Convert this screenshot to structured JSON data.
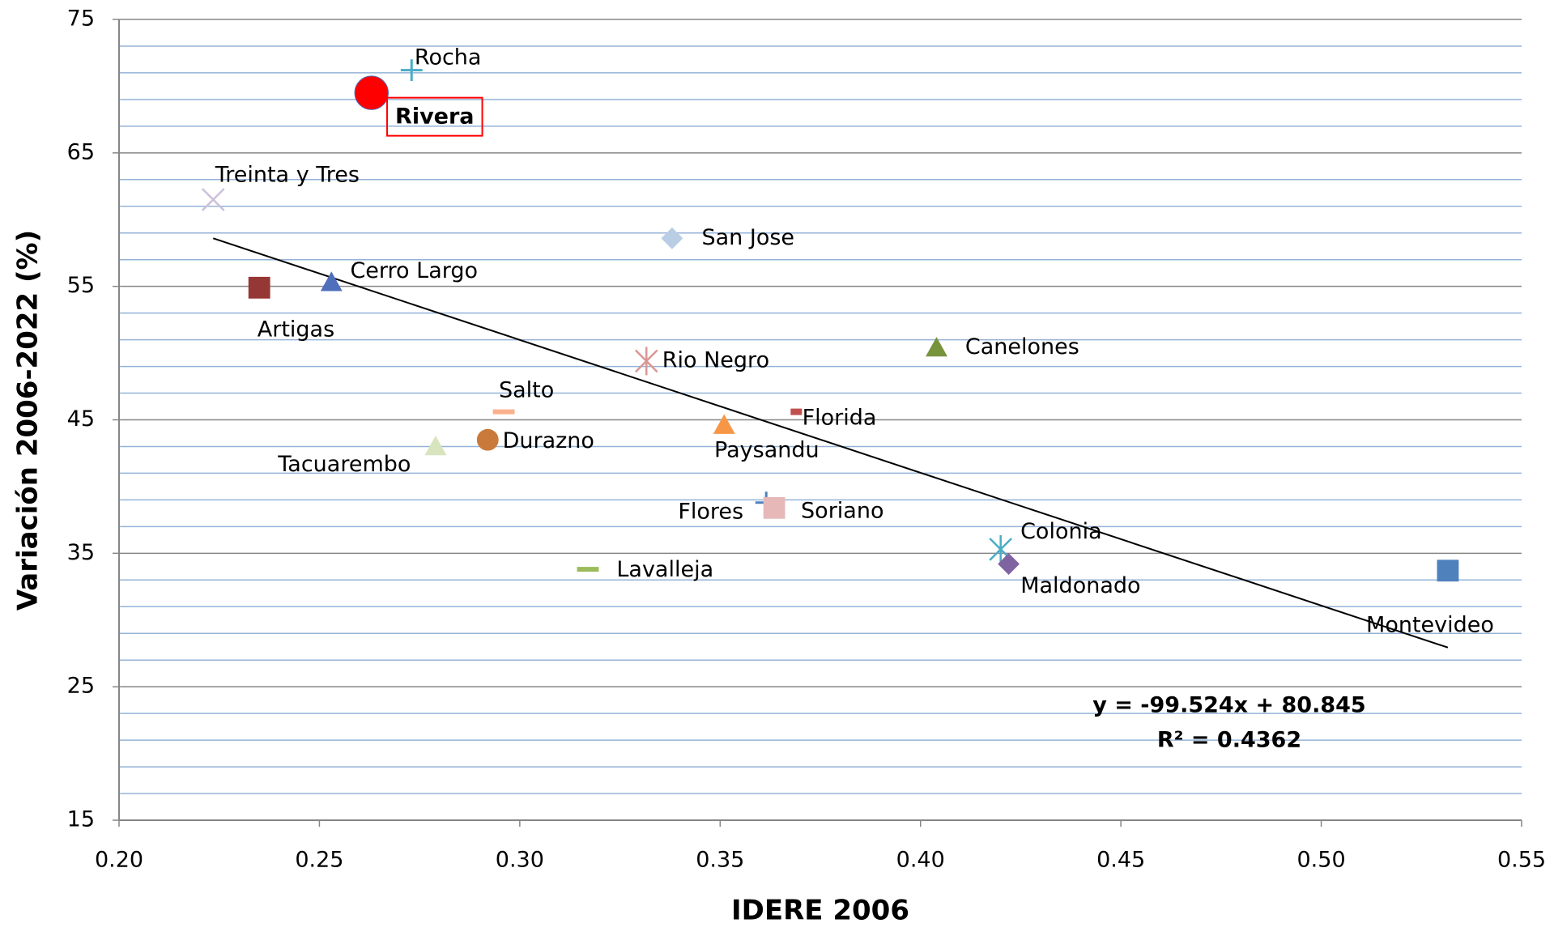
{
  "chart_data": {
    "type": "scatter",
    "x_label": "IDERE 2006",
    "y_label": "Variación 2006-2022 (%)",
    "xlim": [
      0.2,
      0.55
    ],
    "xticks": [
      {
        "value": 0.2,
        "label": "0.20"
      },
      {
        "value": 0.25,
        "label": "0.25"
      },
      {
        "value": 0.3,
        "label": "0.30"
      },
      {
        "value": 0.35,
        "label": "0.35"
      },
      {
        "value": 0.4,
        "label": "0.40"
      },
      {
        "value": 0.45,
        "label": "0.45"
      },
      {
        "value": 0.5,
        "label": "0.50"
      },
      {
        "value": 0.55,
        "label": "0.55"
      }
    ],
    "ylim": [
      15,
      75
    ],
    "yticks": [
      15,
      25,
      35,
      45,
      55,
      65,
      75
    ],
    "grid": true,
    "series": [
      {
        "name": "Rocha",
        "color": "#4bacc6",
        "marker": "plus",
        "x": [
          0.273
        ],
        "values": [
          71.2
        ]
      },
      {
        "name": "Rivera",
        "color": "#ff0000",
        "marker": "big-circle",
        "x": [
          0.263
        ],
        "values": [
          69.5
        ]
      },
      {
        "name": "Treinta y Tres",
        "color": "#ccc0da",
        "marker": "x",
        "x": [
          0.2235
        ],
        "values": [
          61.5
        ]
      },
      {
        "name": "San Jose",
        "color": "#b9cde5",
        "marker": "diamond",
        "x": [
          0.338
        ],
        "values": [
          58.6
        ]
      },
      {
        "name": "Cerro Largo",
        "color": "#4f6fbd",
        "marker": "triangle",
        "x": [
          0.253
        ],
        "values": [
          55.3
        ]
      },
      {
        "name": "Artigas",
        "color": "#953735",
        "marker": "square",
        "x": [
          0.235
        ],
        "values": [
          54.9
        ]
      },
      {
        "name": "Canelones",
        "color": "#77933c",
        "marker": "triangle",
        "x": [
          0.404
        ],
        "values": [
          50.4
        ]
      },
      {
        "name": "Rio Negro",
        "color": "#d99694",
        "marker": "asterisk",
        "x": [
          0.3316
        ],
        "values": [
          49.4
        ]
      },
      {
        "name": "Salto",
        "color": "#fab08b",
        "marker": "dash",
        "x": [
          0.296
        ],
        "values": [
          45.6
        ]
      },
      {
        "name": "Florida",
        "color": "#c0504d",
        "marker": "small-dash",
        "x": [
          0.369
        ],
        "values": [
          45.6
        ]
      },
      {
        "name": "Paysandu",
        "color": "#f79646",
        "marker": "triangle",
        "x": [
          0.351
        ],
        "values": [
          44.6
        ]
      },
      {
        "name": "Durazno",
        "color": "#c97a3a",
        "marker": "circle",
        "x": [
          0.292
        ],
        "values": [
          43.5
        ]
      },
      {
        "name": "Tacuarembo",
        "color": "#d7e4bd",
        "marker": "triangle",
        "x": [
          0.279
        ],
        "values": [
          43.0
        ]
      },
      {
        "name": "Flores",
        "color": "#4f81bd",
        "marker": "plus",
        "x": [
          0.3615
        ],
        "values": [
          38.8
        ]
      },
      {
        "name": "Soriano",
        "color": "#e6b9b8",
        "marker": "square",
        "x": [
          0.3635
        ],
        "values": [
          38.4
        ]
      },
      {
        "name": "Colonia",
        "color": "#4bacc6",
        "marker": "asterisk",
        "x": [
          0.42
        ],
        "values": [
          35.3
        ]
      },
      {
        "name": "Maldonado",
        "color": "#8064a2",
        "marker": "diamond",
        "x": [
          0.422
        ],
        "values": [
          34.2
        ]
      },
      {
        "name": "Lavalleja",
        "color": "#9bbb59",
        "marker": "dash",
        "x": [
          0.317
        ],
        "values": [
          33.8
        ]
      },
      {
        "name": "Montevideo",
        "color": "#4f81bd",
        "marker": "square",
        "x": [
          0.5316
        ],
        "values": [
          33.7
        ]
      }
    ],
    "trendline": {
      "slope": -99.524,
      "intercept": 80.845,
      "label": "y = -99.524x + 80.845",
      "r2_label": "R² = 0.4362"
    }
  }
}
